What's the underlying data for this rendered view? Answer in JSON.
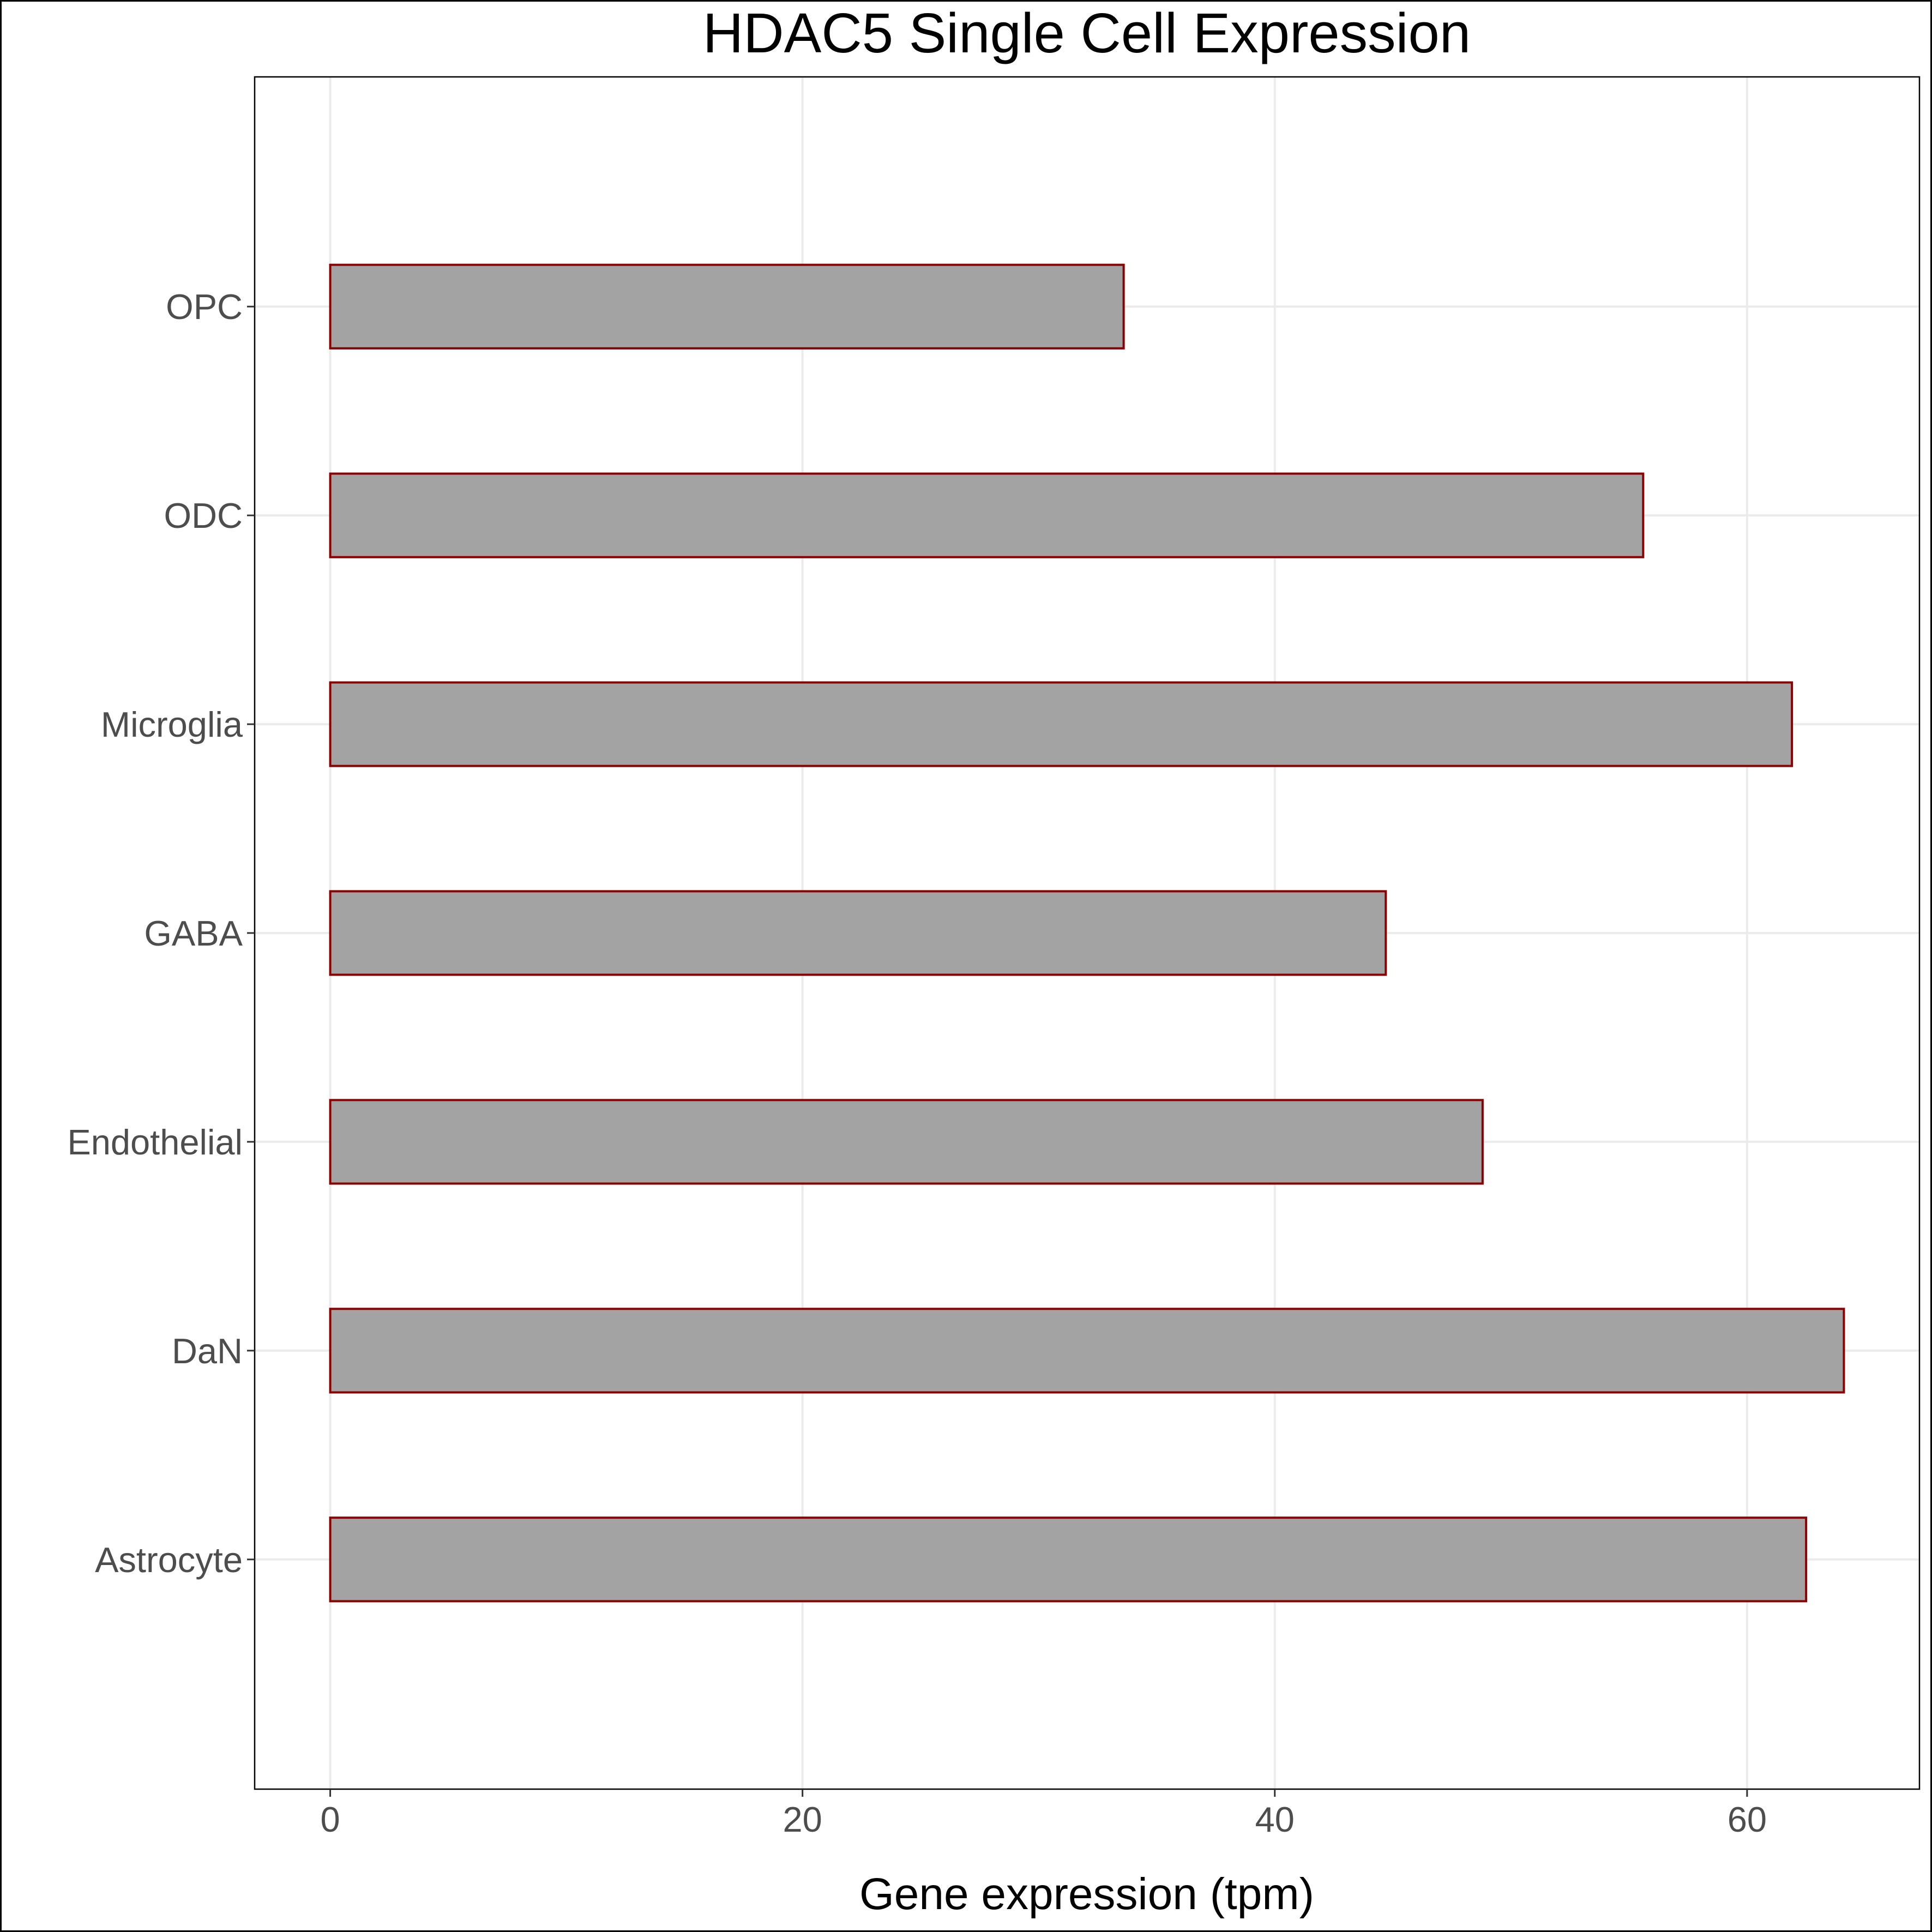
{
  "chart_data": {
    "type": "bar",
    "orientation": "horizontal",
    "title": "HDAC5 Single Cell Expression",
    "xlabel": "Gene expression (tpm)",
    "ylabel": "",
    "categories": [
      "Astrocyte",
      "DaN",
      "Endothelial",
      "GABA",
      "Microglia",
      "ODC",
      "OPC"
    ],
    "values": [
      62.5,
      64.1,
      48.8,
      44.7,
      61.9,
      55.6,
      33.6
    ],
    "xlim": [
      -3.2,
      67.3
    ],
    "xticks": [
      0,
      20,
      40,
      60
    ],
    "xtick_labels": [
      "0",
      "20",
      "40",
      "60"
    ],
    "grid": true,
    "bar_fill": "#a3a3a3",
    "bar_stroke": "#8b0000",
    "grid_color": "#ebebeb"
  }
}
